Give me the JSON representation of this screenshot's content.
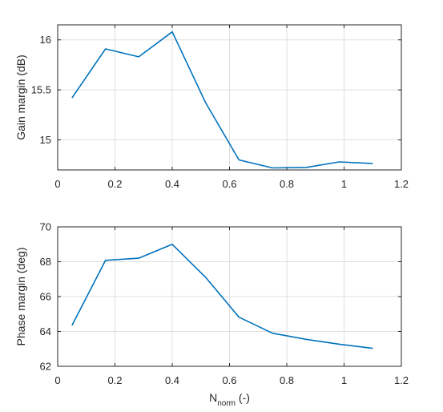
{
  "chart_data": [
    {
      "type": "line",
      "ylabel": "Gain margin (dB)",
      "xlabel": "",
      "xlim": [
        0,
        1.2
      ],
      "ylim": [
        14.7,
        16.15
      ],
      "xticks": [
        0,
        0.2,
        0.4,
        0.6,
        0.8,
        1,
        1.2
      ],
      "xtick_labels": [
        "0",
        "0.2",
        "0.4",
        "0.6",
        "0.8",
        "1",
        "1.2"
      ],
      "yticks": [
        15,
        15.5,
        16
      ],
      "ytick_labels": [
        "15",
        "15.5",
        "16"
      ],
      "grid": true,
      "series": [
        {
          "color": "#0072BD",
          "x": [
            0.05,
            0.167,
            0.283,
            0.4,
            0.517,
            0.633,
            0.75,
            0.867,
            0.983,
            1.1
          ],
          "y": [
            15.42,
            15.91,
            15.83,
            16.08,
            15.37,
            14.8,
            14.72,
            14.725,
            14.78,
            14.765
          ]
        }
      ]
    },
    {
      "type": "line",
      "ylabel": "Phase margin (deg)",
      "xlabel": "N",
      "xlabel_sub": "norm",
      "xlabel_suffix": " (-)",
      "xlim": [
        0,
        1.2
      ],
      "ylim": [
        62,
        70
      ],
      "xticks": [
        0,
        0.2,
        0.4,
        0.6,
        0.8,
        1,
        1.2
      ],
      "xtick_labels": [
        "0",
        "0.2",
        "0.4",
        "0.6",
        "0.8",
        "1",
        "1.2"
      ],
      "yticks": [
        62,
        64,
        66,
        68,
        70
      ],
      "ytick_labels": [
        "62",
        "64",
        "66",
        "68",
        "70"
      ],
      "grid": true,
      "series": [
        {
          "color": "#0072BD",
          "x": [
            0.05,
            0.167,
            0.283,
            0.4,
            0.517,
            0.633,
            0.75,
            0.867,
            0.983,
            1.1
          ],
          "y": [
            64.35,
            68.08,
            68.2,
            69.0,
            67.1,
            64.82,
            63.9,
            63.55,
            63.27,
            63.03
          ]
        }
      ]
    }
  ]
}
